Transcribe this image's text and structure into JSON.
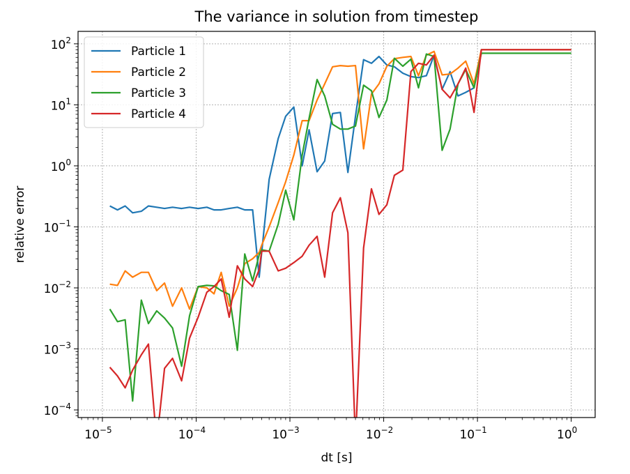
{
  "chart_data": {
    "type": "line",
    "title": "The variance in solution from timestep",
    "xlabel": "dt [s]",
    "ylabel": "relative error",
    "xscale": "log",
    "yscale": "log",
    "xlim": [
      5.5e-06,
      1.8
    ],
    "ylim": [
      7.5e-05,
      160
    ],
    "grid": true,
    "legend_position": "top-left",
    "x_ticks": [
      {
        "base": "10",
        "exp": "−5",
        "value": 1e-05
      },
      {
        "base": "10",
        "exp": "−4",
        "value": 0.0001
      },
      {
        "base": "10",
        "exp": "−3",
        "value": 0.001
      },
      {
        "base": "10",
        "exp": "−2",
        "value": 0.01
      },
      {
        "base": "10",
        "exp": "−1",
        "value": 0.1
      },
      {
        "base": "10",
        "exp": "0",
        "value": 1
      }
    ],
    "y_ticks": [
      {
        "base": "10",
        "exp": "−4",
        "value": 0.0001
      },
      {
        "base": "10",
        "exp": "−3",
        "value": 0.001
      },
      {
        "base": "10",
        "exp": "−2",
        "value": 0.01
      },
      {
        "base": "10",
        "exp": "−1",
        "value": 0.1
      },
      {
        "base": "10",
        "exp": "0",
        "value": 1
      },
      {
        "base": "10",
        "exp": "1",
        "value": 10
      },
      {
        "base": "10",
        "exp": "2",
        "value": 100
      }
    ],
    "x": [
      1.2e-05,
      1.45e-05,
      1.75e-05,
      2.1e-05,
      2.6e-05,
      3.1e-05,
      3.8e-05,
      4.6e-05,
      5.6e-05,
      7e-05,
      8.5e-05,
      0.000105,
      0.00013,
      0.000155,
      0.000185,
      0.000225,
      0.000275,
      0.00033,
      0.0004,
      0.00047,
      0.0005,
      0.0006,
      0.00075,
      0.0009,
      0.0011,
      0.00135,
      0.0016,
      0.00195,
      0.00235,
      0.00285,
      0.00345,
      0.00415,
      0.005,
      0.0061,
      0.0074,
      0.0089,
      0.0108,
      0.013,
      0.016,
      0.0195,
      0.0235,
      0.0285,
      0.0345,
      0.042,
      0.051,
      0.062,
      0.075,
      0.092,
      0.11,
      1.0
    ],
    "series": [
      {
        "name": "Particle 1",
        "color": "#1f77b4",
        "values": [
          0.22,
          0.19,
          0.22,
          0.17,
          0.18,
          0.22,
          0.21,
          0.2,
          0.21,
          0.2,
          0.21,
          0.2,
          0.21,
          0.19,
          0.19,
          0.2,
          0.21,
          0.19,
          0.19,
          0.015,
          0.038,
          0.6,
          2.8,
          6.5,
          9.2,
          1.0,
          3.9,
          0.8,
          1.2,
          7.2,
          7.5,
          0.78,
          6.5,
          55,
          48,
          62,
          45,
          42,
          33,
          29,
          28,
          30,
          65,
          18,
          35,
          14,
          16,
          19,
          80,
          80
        ]
      },
      {
        "name": "Particle 2",
        "color": "#ff7f0e",
        "values": [
          0.0115,
          0.011,
          0.019,
          0.015,
          0.018,
          0.018,
          0.009,
          0.012,
          0.005,
          0.01,
          0.0045,
          0.0105,
          0.01,
          0.008,
          0.018,
          0.005,
          0.01,
          0.025,
          0.03,
          0.038,
          0.05,
          0.1,
          0.25,
          0.55,
          1.5,
          5.5,
          5.5,
          12,
          22,
          42,
          44,
          43,
          44,
          1.9,
          15,
          22,
          43,
          57,
          60,
          62,
          30,
          65,
          75,
          31,
          32,
          40,
          52,
          22,
          80,
          80
        ]
      },
      {
        "name": "Particle 3",
        "color": "#2ca02c",
        "values": [
          0.0045,
          0.0028,
          0.003,
          0.00014,
          0.0063,
          0.0026,
          0.0042,
          0.0032,
          0.0022,
          0.00052,
          0.0035,
          0.0105,
          0.011,
          0.0108,
          0.009,
          0.0078,
          0.00095,
          0.036,
          0.013,
          0.035,
          0.042,
          0.04,
          0.11,
          0.4,
          0.13,
          1.5,
          6,
          26,
          14,
          4.8,
          4,
          4,
          4.5,
          21,
          17,
          6.2,
          12,
          58,
          43,
          56,
          19,
          68,
          62,
          1.8,
          4,
          22,
          38,
          19,
          70,
          70
        ]
      },
      {
        "name": "Particle 4",
        "color": "#d62728",
        "values": [
          0.0005,
          0.00036,
          0.00023,
          0.00045,
          0.0008,
          0.0012,
          3e-05,
          0.00048,
          0.0007,
          0.0003,
          0.0015,
          0.0033,
          0.0085,
          0.0105,
          0.014,
          0.0033,
          0.023,
          0.014,
          0.0105,
          0.02,
          0.04,
          0.04,
          0.019,
          0.021,
          0.026,
          0.033,
          0.05,
          0.07,
          0.015,
          0.17,
          0.3,
          0.08,
          3e-05,
          0.045,
          0.42,
          0.16,
          0.23,
          0.7,
          0.85,
          35,
          48,
          45,
          65,
          18,
          13,
          22,
          40,
          7.5,
          80,
          80
        ]
      }
    ]
  }
}
